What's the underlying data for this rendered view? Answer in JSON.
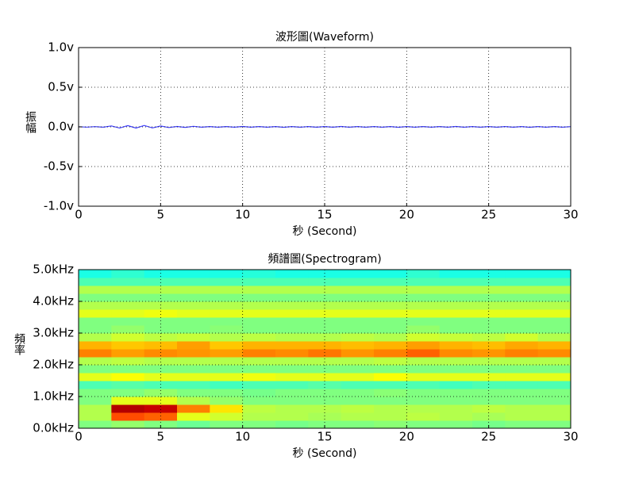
{
  "chart_data": [
    {
      "type": "line",
      "title": "波形圖(Waveform)",
      "xlabel": "秒 (Second)",
      "ylabel": "振幅",
      "x": [
        0,
        0.5,
        1,
        1.5,
        2,
        2.5,
        3,
        3.5,
        4,
        4.5,
        5,
        5.5,
        6,
        6.5,
        7,
        7.5,
        8,
        8.5,
        9,
        9.5,
        10,
        10.5,
        11,
        11.5,
        12,
        12.5,
        13,
        13.5,
        14,
        14.5,
        15,
        15.5,
        16,
        16.5,
        17,
        17.5,
        18,
        18.5,
        19,
        19.5,
        20,
        20.5,
        21,
        21.5,
        22,
        22.5,
        23,
        23.5,
        24,
        24.5,
        25,
        25.5,
        26,
        26.5,
        27,
        27.5,
        28,
        28.5,
        29,
        29.5,
        30
      ],
      "series": [
        {
          "name": "Waveform",
          "color": "#3d3dff",
          "values": [
            0.002,
            -0.003,
            0.003,
            -0.004,
            0.012,
            -0.014,
            0.016,
            -0.015,
            0.018,
            -0.013,
            0.011,
            -0.008,
            0.005,
            -0.006,
            0.007,
            -0.004,
            0.004,
            -0.004,
            0.004,
            -0.004,
            0.005,
            -0.004,
            0.004,
            -0.004,
            0.004,
            -0.005,
            0.004,
            -0.004,
            0.004,
            -0.004,
            0.004,
            -0.004,
            0.005,
            -0.004,
            0.004,
            -0.004,
            0.004,
            -0.004,
            0.004,
            -0.005,
            0.004,
            -0.004,
            0.004,
            -0.004,
            0.004,
            -0.004,
            0.005,
            -0.004,
            0.004,
            -0.004,
            0.004,
            -0.004,
            0.004,
            -0.004,
            0.004,
            -0.005,
            0.004,
            -0.004,
            0.004,
            -0.004,
            0.003
          ]
        }
      ],
      "xlim": [
        0,
        30
      ],
      "xticks": [
        0,
        5,
        10,
        15,
        20,
        25,
        30
      ],
      "ylim": [
        -1,
        1
      ],
      "yticks": [
        {
          "value": -1,
          "label": "-1.0v"
        },
        {
          "value": -0.5,
          "label": "-0.5v"
        },
        {
          "value": 0,
          "label": "0.0v"
        },
        {
          "value": 0.5,
          "label": "0.5v"
        },
        {
          "value": 1,
          "label": "1.0v"
        }
      ],
      "grid": true
    },
    {
      "type": "heatmap",
      "title": "頻譜圖(Spectrogram)",
      "xlabel": "秒 (Second)",
      "ylabel": "頻率",
      "colormap": "jet",
      "xbins": [
        0,
        2,
        4,
        6,
        8,
        10,
        12,
        14,
        16,
        18,
        20,
        22,
        24,
        26,
        28,
        30
      ],
      "ybins": [
        0,
        250,
        500,
        750,
        1000,
        1250,
        1500,
        1750,
        2000,
        2250,
        2500,
        2750,
        3000,
        3250,
        3500,
        3750,
        4000,
        4250,
        4500,
        4750,
        5000
      ],
      "values": [
        [
          0.5,
          0.52,
          0.5,
          0.48,
          0.5,
          0.5,
          0.49,
          0.5,
          0.5,
          0.51,
          0.5,
          0.5,
          0.49,
          0.5,
          0.5
        ],
        [
          0.55,
          0.8,
          0.78,
          0.6,
          0.58,
          0.55,
          0.55,
          0.54,
          0.55,
          0.55,
          0.56,
          0.55,
          0.54,
          0.55,
          0.55
        ],
        [
          0.55,
          0.95,
          0.93,
          0.75,
          0.65,
          0.56,
          0.55,
          0.55,
          0.56,
          0.55,
          0.55,
          0.55,
          0.56,
          0.55,
          0.55
        ],
        [
          0.5,
          0.6,
          0.6,
          0.55,
          0.52,
          0.5,
          0.5,
          0.5,
          0.5,
          0.5,
          0.5,
          0.5,
          0.5,
          0.5,
          0.5
        ],
        [
          0.5,
          0.5,
          0.52,
          0.5,
          0.5,
          0.49,
          0.5,
          0.5,
          0.5,
          0.51,
          0.5,
          0.5,
          0.5,
          0.5,
          0.5
        ],
        [
          0.45,
          0.46,
          0.45,
          0.45,
          0.44,
          0.45,
          0.45,
          0.46,
          0.45,
          0.45,
          0.45,
          0.44,
          0.45,
          0.45,
          0.45
        ],
        [
          0.6,
          0.62,
          0.6,
          0.6,
          0.6,
          0.61,
          0.6,
          0.6,
          0.6,
          0.62,
          0.6,
          0.6,
          0.6,
          0.6,
          0.6
        ],
        [
          0.5,
          0.5,
          0.5,
          0.5,
          0.5,
          0.5,
          0.5,
          0.5,
          0.5,
          0.5,
          0.5,
          0.5,
          0.5,
          0.5,
          0.5
        ],
        [
          0.55,
          0.56,
          0.55,
          0.55,
          0.55,
          0.55,
          0.55,
          0.55,
          0.55,
          0.56,
          0.55,
          0.55,
          0.55,
          0.55,
          0.55
        ],
        [
          0.75,
          0.72,
          0.74,
          0.73,
          0.72,
          0.75,
          0.74,
          0.76,
          0.73,
          0.75,
          0.78,
          0.74,
          0.73,
          0.75,
          0.74
        ],
        [
          0.7,
          0.68,
          0.69,
          0.72,
          0.68,
          0.7,
          0.7,
          0.7,
          0.69,
          0.7,
          0.72,
          0.7,
          0.69,
          0.71,
          0.7
        ],
        [
          0.55,
          0.58,
          0.56,
          0.57,
          0.55,
          0.56,
          0.55,
          0.55,
          0.56,
          0.55,
          0.58,
          0.57,
          0.56,
          0.58,
          0.55
        ],
        [
          0.5,
          0.52,
          0.5,
          0.5,
          0.51,
          0.5,
          0.5,
          0.5,
          0.5,
          0.5,
          0.52,
          0.5,
          0.5,
          0.5,
          0.5
        ],
        [
          0.5,
          0.5,
          0.5,
          0.5,
          0.5,
          0.5,
          0.5,
          0.5,
          0.5,
          0.5,
          0.5,
          0.5,
          0.5,
          0.5,
          0.5
        ],
        [
          0.6,
          0.6,
          0.61,
          0.6,
          0.6,
          0.6,
          0.6,
          0.6,
          0.6,
          0.6,
          0.6,
          0.6,
          0.6,
          0.6,
          0.6
        ],
        [
          0.55,
          0.55,
          0.55,
          0.55,
          0.55,
          0.55,
          0.55,
          0.55,
          0.55,
          0.55,
          0.55,
          0.55,
          0.55,
          0.55,
          0.55
        ],
        [
          0.5,
          0.5,
          0.5,
          0.5,
          0.5,
          0.5,
          0.5,
          0.5,
          0.5,
          0.5,
          0.5,
          0.5,
          0.5,
          0.5,
          0.5
        ],
        [
          0.55,
          0.55,
          0.55,
          0.55,
          0.55,
          0.55,
          0.55,
          0.55,
          0.55,
          0.55,
          0.55,
          0.55,
          0.55,
          0.55,
          0.55
        ],
        [
          0.45,
          0.45,
          0.45,
          0.45,
          0.45,
          0.45,
          0.45,
          0.45,
          0.45,
          0.45,
          0.45,
          0.45,
          0.45,
          0.45,
          0.45
        ],
        [
          0.4,
          0.42,
          0.4,
          0.4,
          0.4,
          0.41,
          0.4,
          0.4,
          0.4,
          0.4,
          0.42,
          0.4,
          0.4,
          0.4,
          0.4
        ]
      ],
      "xlim": [
        0,
        30
      ],
      "xticks": [
        0,
        5,
        10,
        15,
        20,
        25,
        30
      ],
      "ylim": [
        0,
        5000
      ],
      "yticks": [
        {
          "value": 0,
          "label": "0.0kHz"
        },
        {
          "value": 1000,
          "label": "1.0kHz"
        },
        {
          "value": 2000,
          "label": "2.0kHz"
        },
        {
          "value": 3000,
          "label": "3.0kHz"
        },
        {
          "value": 4000,
          "label": "4.0kHz"
        },
        {
          "value": 5000,
          "label": "5.0kHz"
        }
      ],
      "grid": true
    }
  ]
}
